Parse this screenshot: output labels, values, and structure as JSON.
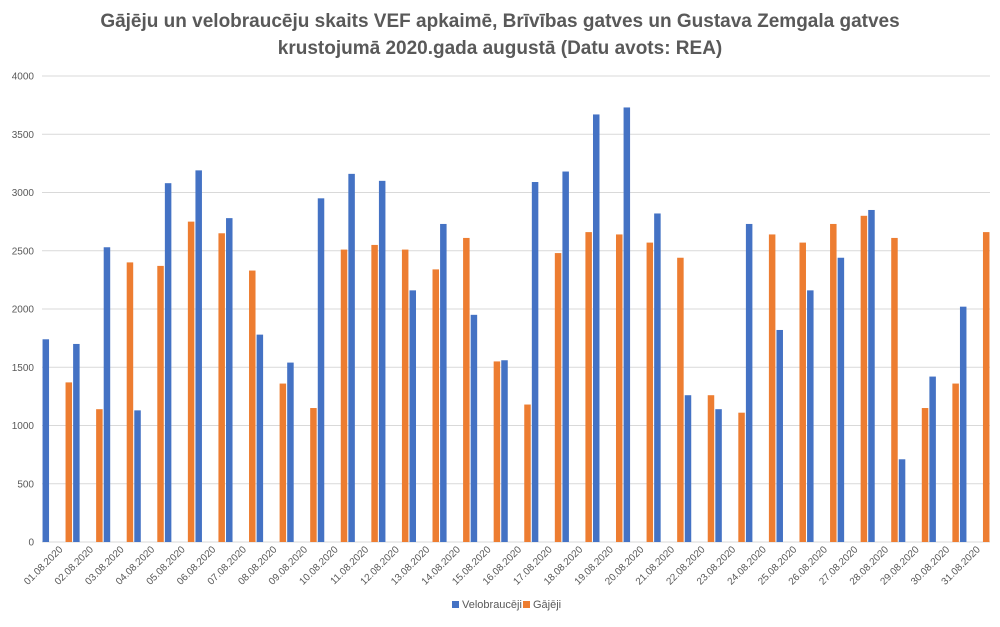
{
  "chart_data": {
    "type": "bar",
    "title_line1": "Gājēju un velobraucēju skaits VEF apkaimē, Brīvības gatves un Gustava Zemgala gatves",
    "title_line2": "krustojumā 2020.gada augustā (Datu avots: REA)",
    "categories": [
      "01.08.2020",
      "02.08.2020",
      "03.08.2020",
      "04.08.2020",
      "05.08.2020",
      "06.08.2020",
      "07.08.2020",
      "08.08.2020",
      "09.08.2020",
      "10.08.2020",
      "11.08.2020",
      "12.08.2020",
      "13.08.2020",
      "14.08.2020",
      "15.08.2020",
      "16.08.2020",
      "17.08.2020",
      "18.08.2020",
      "19.08.2020",
      "20.08.2020",
      "21.08.2020",
      "22.08.2020",
      "23.08.2020",
      "24.08.2020",
      "25.08.2020",
      "26.08.2020",
      "27.08.2020",
      "28.08.2020",
      "29.08.2020",
      "30.08.2020",
      "31.08.2020"
    ],
    "series": [
      {
        "name": "Velobraucēji",
        "color": "#4472C4",
        "values": [
          1740,
          1700,
          2530,
          1130,
          3080,
          3190,
          2780,
          1780,
          1540,
          2950,
          3160,
          3100,
          2160,
          2730,
          1950,
          1560,
          3090,
          3180,
          3670,
          3730,
          2820,
          1260,
          1140,
          2730,
          1820,
          2160,
          2440,
          2850,
          710,
          1420,
          2020
        ]
      },
      {
        "name": "Gājēji",
        "color": "#ED7D31",
        "values": [
          1370,
          1140,
          2400,
          2370,
          2750,
          2650,
          2330,
          1360,
          1150,
          2510,
          2550,
          2510,
          2340,
          2610,
          1550,
          1180,
          2480,
          2660,
          2640,
          2570,
          2440,
          1260,
          1110,
          2640,
          2570,
          2730,
          2800,
          2610,
          1150,
          1360,
          2660
        ]
      }
    ],
    "yticks": [
      0,
      500,
      1000,
      1500,
      2000,
      2500,
      3000,
      3500,
      4000
    ],
    "ylim": [
      0,
      4000
    ],
    "grid": true,
    "legend_position": "bottom"
  }
}
